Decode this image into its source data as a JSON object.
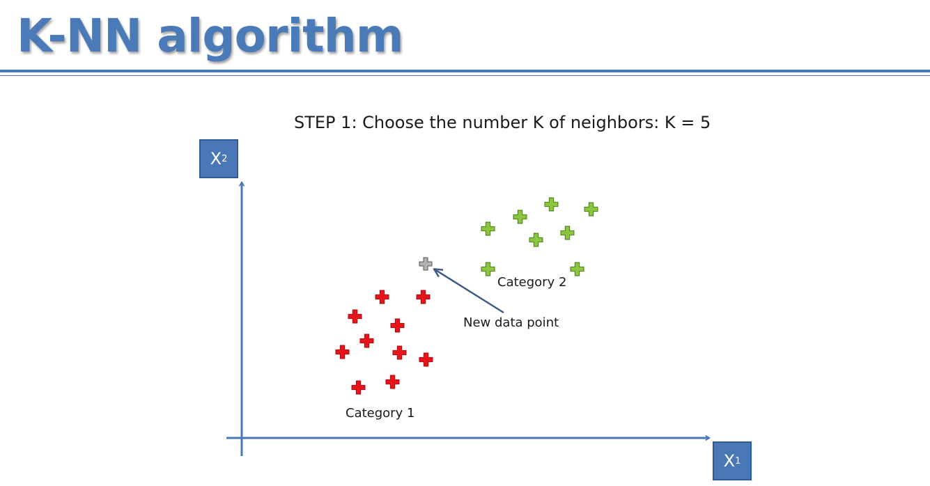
{
  "title": "K-NN algorithm",
  "step": {
    "prefix": "STEP 1",
    "text": ": Choose the number K of neighbors: K = 5"
  },
  "axes": {
    "x_label_main": "X",
    "x_label_sub": "1",
    "y_label_main": "X",
    "y_label_sub": "2"
  },
  "colors": {
    "accent": "#4a78b7",
    "category1": "#e8141b",
    "category2": "#8cc63f",
    "new_point": "#b3b3b3"
  },
  "labels": {
    "category1": "Category 1",
    "category2": "Category 2",
    "new_point": "New data point"
  }
}
